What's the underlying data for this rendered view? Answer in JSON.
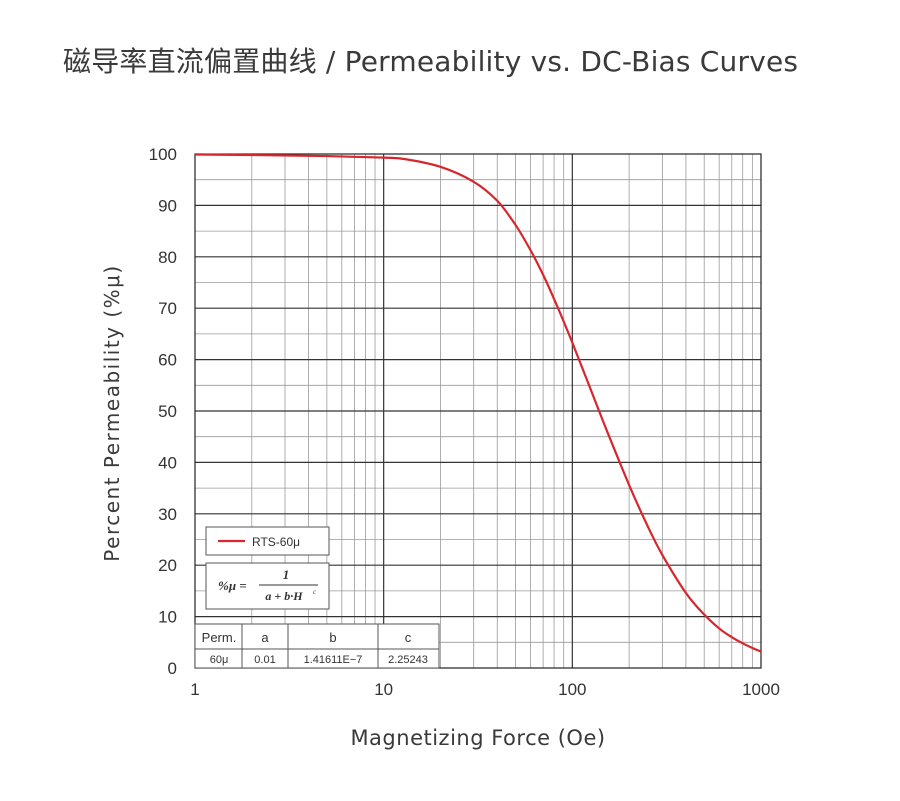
{
  "title": "磁导率直流偏置曲线 / Permeability vs. DC-Bias Curves",
  "chart_data": {
    "type": "line",
    "title": "磁导率直流偏置曲线 / Permeability vs. DC-Bias Curves",
    "xlabel": "Magnetizing Force (Oe)",
    "ylabel": "Percent Permeability (%μ)",
    "xscale": "log",
    "xlim": [
      1,
      1000
    ],
    "ylim": [
      0,
      100
    ],
    "x_ticks": [
      "1",
      "10",
      "100",
      "1000"
    ],
    "y_ticks": [
      "0",
      "10",
      "20",
      "30",
      "40",
      "50",
      "60",
      "70",
      "80",
      "90",
      "100"
    ],
    "grid": true,
    "legend_position": "bottom-left",
    "series": [
      {
        "name": "RTS-60μ",
        "color": "#d8262d",
        "x": [
          1,
          2,
          5,
          10,
          13,
          20,
          30,
          40,
          50,
          60,
          70,
          80,
          90,
          100,
          120,
          150,
          200,
          250,
          300,
          400,
          500,
          600,
          700,
          800,
          900,
          1000
        ],
        "y": [
          99.9,
          99.8,
          99.6,
          99.3,
          99.0,
          97.5,
          94.6,
          90.9,
          86.2,
          81.3,
          76.5,
          71.8,
          67.4,
          63.3,
          55.9,
          46.8,
          35.6,
          27.7,
          22.0,
          14.6,
          10.4,
          7.7,
          6.0,
          4.8,
          3.9,
          3.2
        ]
      }
    ],
    "formula": {
      "lhs": "%μ =",
      "numerator": "1",
      "denominator": "a + b·H",
      "exponent": "c"
    },
    "table": {
      "headers": [
        "Perm.",
        "a",
        "b",
        "c"
      ],
      "rows": [
        [
          "60μ",
          "0.01",
          "1.41611E−7",
          "2.25243"
        ]
      ]
    }
  }
}
